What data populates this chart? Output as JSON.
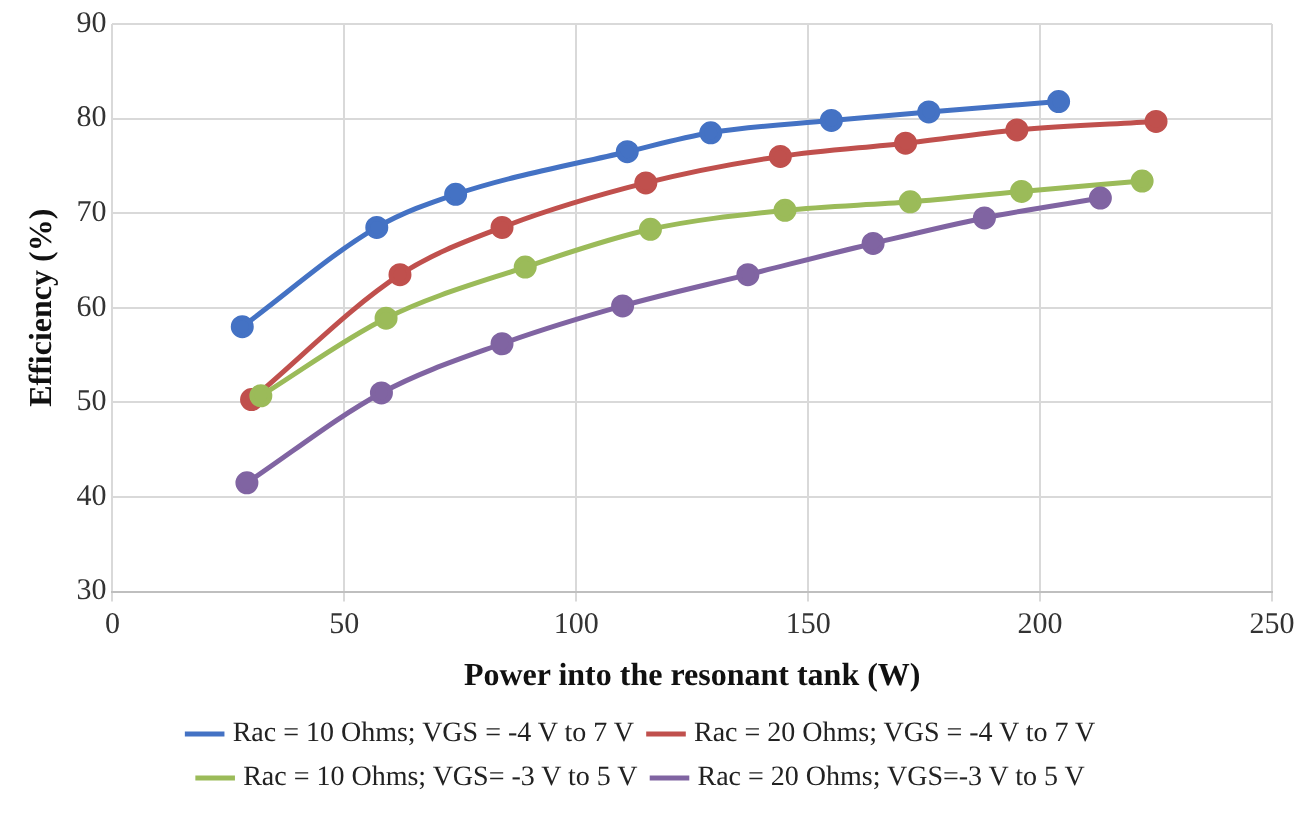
{
  "chart_data": {
    "type": "line",
    "xlabel": "Power into the resonant tank (W)",
    "ylabel": "Efficiency (%)",
    "xlim": [
      0,
      250
    ],
    "xticks": [
      0,
      50,
      100,
      150,
      200,
      250
    ],
    "ylim": [
      30,
      90
    ],
    "yticks": [
      30,
      40,
      50,
      60,
      70,
      80,
      90
    ],
    "grid": true,
    "legend": "bottom",
    "marker": "circle",
    "line_style": "solid",
    "series": [
      {
        "name": "Rac = 10 Ohms; VGS = -4 V to 7 V",
        "color": "#4472c4",
        "x": [
          28,
          57,
          74,
          111,
          129,
          155,
          176,
          204
        ],
        "values": [
          58,
          68.5,
          72,
          76.5,
          78.5,
          79.8,
          80.7,
          81.8
        ]
      },
      {
        "name": "Rac = 20 Ohms; VGS = -4 V to 7 V",
        "color": "#c0504d",
        "x": [
          30,
          62,
          84,
          115,
          144,
          171,
          195,
          225
        ],
        "values": [
          50.3,
          63.5,
          68.5,
          73.2,
          76,
          77.4,
          78.8,
          79.7
        ]
      },
      {
        "name": "Rac = 10 Ohms; VGS= -3 V to 5 V",
        "color": "#9bbb59",
        "x": [
          32,
          59,
          89,
          116,
          145,
          172,
          196,
          222
        ],
        "values": [
          50.7,
          58.9,
          64.3,
          68.3,
          70.3,
          71.2,
          72.3,
          73.4
        ]
      },
      {
        "name": "Rac = 20 Ohms; VGS=-3 V to 5 V",
        "color": "#8064a2",
        "x": [
          29,
          58,
          84,
          110,
          137,
          164,
          188,
          213
        ],
        "values": [
          41.5,
          51,
          56.2,
          60.2,
          63.5,
          66.8,
          69.5,
          71.6
        ]
      }
    ]
  }
}
